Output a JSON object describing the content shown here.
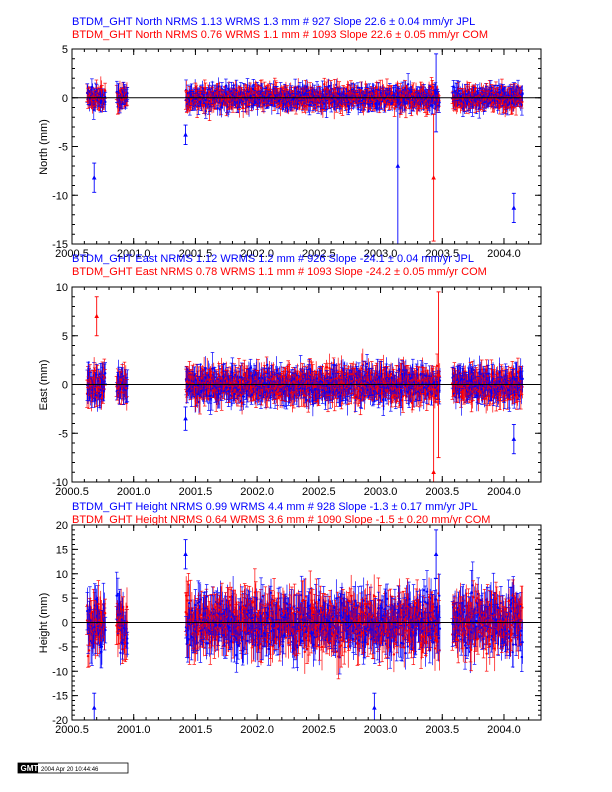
{
  "colors": {
    "jpl": "#0000ff",
    "com": "#ff0000",
    "axis": "#000000"
  },
  "chart_data": [
    {
      "type": "scatter",
      "panel": "north",
      "ylabel": "North (mm)",
      "xlim": [
        2000.5,
        2004.3
      ],
      "ylim": [
        -15,
        5
      ],
      "x_ticks": [
        2000.5,
        2001.0,
        2001.5,
        2002.0,
        2002.5,
        2003.0,
        2003.5,
        2004.0
      ],
      "x_tick_labels": [
        "2000.5",
        "2001.0",
        "2001.5",
        "2002.0",
        "2002.5",
        "2003.0",
        "2003.5",
        "2004.0"
      ],
      "y_ticks": [
        5,
        0,
        -5,
        -10,
        -15
      ],
      "y_tick_labels": [
        "5",
        "0",
        "-5",
        "-10",
        "-15"
      ],
      "zero_line": true,
      "series": [
        {
          "name": "JPL",
          "color": "#0000ff",
          "title": "BTDM_GHT North NRMS 1.13 WRMS  1.3 mm # 927 Slope   22.6 ±  0.04 mm/yr JPL",
          "nrms": 1.13,
          "wrms_mm": 1.3,
          "n": 927,
          "slope_mm_yr": 22.6,
          "slope_sigma": 0.04
        },
        {
          "name": "COM",
          "color": "#ff0000",
          "title": "BTDM_GHT North NRMS 0.76 WRMS  1.1 mm # 1093 Slope   22.6 ±  0.05 mm/yr COM",
          "nrms": 0.76,
          "wrms_mm": 1.1,
          "n": 1093,
          "slope_mm_yr": 22.6,
          "slope_sigma": 0.05
        }
      ],
      "points": {
        "segments": [
          [
            2000.62,
            2000.77
          ],
          [
            2000.86,
            2000.95
          ],
          [
            2001.42,
            2003.48
          ],
          [
            2003.58,
            2004.15
          ]
        ],
        "scatter": 0.8,
        "err": 0.8,
        "outliers": [
          {
            "x": 2000.68,
            "y": -8.2,
            "e": 1.5,
            "s": "JPL"
          },
          {
            "x": 2001.42,
            "y": -3.8,
            "e": 1.0,
            "s": "JPL"
          },
          {
            "x": 2003.14,
            "y": -7.0,
            "e": 8.0,
            "s": "JPL"
          },
          {
            "x": 2003.43,
            "y": -8.2,
            "e": 6.5,
            "s": "COM"
          },
          {
            "x": 2003.45,
            "y": 0.5,
            "e": 4.0,
            "s": "JPL"
          },
          {
            "x": 2004.08,
            "y": -11.3,
            "e": 1.5,
            "s": "JPL"
          }
        ]
      }
    },
    {
      "type": "scatter",
      "panel": "east",
      "ylabel": "East (mm)",
      "xlim": [
        2000.5,
        2004.3
      ],
      "ylim": [
        -10,
        10
      ],
      "x_ticks": [
        2000.5,
        2001.0,
        2001.5,
        2002.0,
        2002.5,
        2003.0,
        2003.5,
        2004.0
      ],
      "x_tick_labels": [
        "2000.5",
        "2001.0",
        "2001.5",
        "2002.0",
        "2002.5",
        "2003.0",
        "2003.5",
        "2004.0"
      ],
      "y_ticks": [
        10,
        5,
        0,
        -5,
        -10
      ],
      "y_tick_labels": [
        "10",
        "5",
        "0",
        "-5",
        "-10"
      ],
      "zero_line": true,
      "series": [
        {
          "name": "JPL",
          "color": "#0000ff",
          "title": "BTDM_GHT East NRMS 1.12 WRMS  1.2 mm # 926 Slope  -24.1 ±  0.04 mm/yr JPL",
          "nrms": 1.12,
          "wrms_mm": 1.2,
          "n": 926,
          "slope_mm_yr": -24.1,
          "slope_sigma": 0.04
        },
        {
          "name": "COM",
          "color": "#ff0000",
          "title": "BTDM_GHT East NRMS 0.78 WRMS  1.1 mm # 1093 Slope  -24.2 ±  0.05 mm/yr COM",
          "nrms": 0.78,
          "wrms_mm": 1.1,
          "n": 1093,
          "slope_mm_yr": -24.2,
          "slope_sigma": 0.05
        }
      ],
      "points": {
        "segments": [
          [
            2000.62,
            2000.77
          ],
          [
            2000.86,
            2000.95
          ],
          [
            2001.42,
            2003.48
          ],
          [
            2003.58,
            2004.15
          ]
        ],
        "scatter": 1.2,
        "err": 1.2,
        "outliers": [
          {
            "x": 2000.7,
            "y": 7.0,
            "e": 2.0,
            "s": "COM"
          },
          {
            "x": 2001.42,
            "y": -3.5,
            "e": 1.2,
            "s": "JPL"
          },
          {
            "x": 2003.43,
            "y": -9.0,
            "e": 9.0,
            "s": "COM"
          },
          {
            "x": 2003.47,
            "y": 1.0,
            "e": 8.5,
            "s": "COM"
          },
          {
            "x": 2004.08,
            "y": -5.6,
            "e": 1.5,
            "s": "JPL"
          }
        ]
      }
    },
    {
      "type": "scatter",
      "panel": "height",
      "ylabel": "Height (mm)",
      "xlim": [
        2000.5,
        2004.3
      ],
      "ylim": [
        -20,
        20
      ],
      "x_ticks": [
        2000.5,
        2001.0,
        2001.5,
        2002.0,
        2002.5,
        2003.0,
        2003.5,
        2004.0
      ],
      "x_tick_labels": [
        "2000.5",
        "2001.0",
        "2001.5",
        "2002.0",
        "2002.5",
        "2003.0",
        "2003.5",
        "2004.0"
      ],
      "y_ticks": [
        20,
        15,
        10,
        5,
        0,
        -5,
        -10,
        -15,
        -20
      ],
      "y_tick_labels": [
        "20",
        "15",
        "10",
        "5",
        "0",
        "-5",
        "-10",
        "-15",
        "-20"
      ],
      "zero_line": true,
      "series": [
        {
          "name": "JPL",
          "color": "#0000ff",
          "title": "BTDM_GHT Height NRMS 0.99 WRMS  4.4 mm # 928 Slope   -1.3 ±  0.17 mm/yr JPL",
          "nrms": 0.99,
          "wrms_mm": 4.4,
          "n": 928,
          "slope_mm_yr": -1.3,
          "slope_sigma": 0.17
        },
        {
          "name": "COM",
          "color": "#ff0000",
          "title": "BTDM_GHT Height NRMS 0.64 WRMS  3.6 mm # 1090 Slope   -1.5 ±  0.20 mm/yr COM",
          "nrms": 0.64,
          "wrms_mm": 3.6,
          "n": 1090,
          "slope_mm_yr": -1.5,
          "slope_sigma": 0.2
        }
      ],
      "points": {
        "segments": [
          [
            2000.62,
            2000.77
          ],
          [
            2000.86,
            2000.95
          ],
          [
            2001.42,
            2003.48
          ],
          [
            2003.58,
            2004.15
          ]
        ],
        "scatter": 4.5,
        "err": 3.5,
        "outliers": [
          {
            "x": 2000.68,
            "y": -17.5,
            "e": 3.0,
            "s": "JPL"
          },
          {
            "x": 2001.42,
            "y": 14.0,
            "e": 3.0,
            "s": "JPL"
          },
          {
            "x": 2002.95,
            "y": -17.5,
            "e": 3.0,
            "s": "JPL"
          },
          {
            "x": 2003.45,
            "y": 14.0,
            "e": 5.0,
            "s": "JPL"
          }
        ]
      }
    }
  ],
  "footer": {
    "logo": "GMT",
    "timestamp": "2004 Apr 20 10:44:46"
  }
}
